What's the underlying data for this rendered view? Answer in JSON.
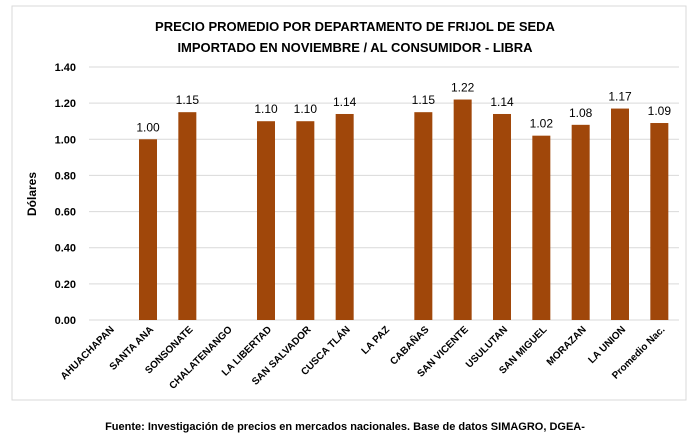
{
  "chart_data": {
    "type": "bar",
    "title_lines": [
      "PRECIO PROMEDIO POR DEPARTAMENTO DE FRIJOL DE SEDA",
      "IMPORTADO EN NOVIEMBRE / AL CONSUMIDOR - LIBRA"
    ],
    "y_label": "Dólares",
    "categories": [
      "AHUACHAPAN",
      "SANTA ANA",
      "SONSONATE",
      "CHALATENANGO",
      "LA LIBERTAD",
      "SAN SALVADOR",
      "CUSCA TLÁN",
      "LA PAZ",
      "CABAÑAS",
      "SAN VICENTE",
      "USULUTAN",
      "SAN MIGUEL",
      "MORAZAN",
      "LA UNION",
      "Promedio Nac."
    ],
    "values": [
      null,
      1.0,
      1.15,
      null,
      1.1,
      1.1,
      1.14,
      null,
      1.15,
      1.22,
      1.14,
      1.02,
      1.08,
      1.17,
      1.09
    ],
    "value_labels": [
      null,
      "1.00",
      "1.15",
      null,
      "1.10",
      "1.10",
      "1.14",
      null,
      "1.15",
      "1.22",
      "1.14",
      "1.02",
      "1.08",
      "1.17",
      "1.09"
    ],
    "color": "#a0470a",
    "ylim": [
      0,
      1.4
    ],
    "yticks": [
      {
        "value": 0,
        "label": "0.00"
      },
      {
        "value": 0.2,
        "label": "0.20"
      },
      {
        "value": 0.4,
        "label": "0.40"
      },
      {
        "value": 0.6,
        "label": "0.60"
      },
      {
        "value": 0.8,
        "label": "0.80"
      },
      {
        "value": 1.0,
        "label": "1.00"
      },
      {
        "value": 1.2,
        "label": "1.20"
      },
      {
        "value": 1.4,
        "label": "1.40"
      }
    ],
    "grid": true,
    "source": "Fuente: Investigación de precios en mercados nacionales. Base de datos SIMAGRO, DGEA-"
  }
}
